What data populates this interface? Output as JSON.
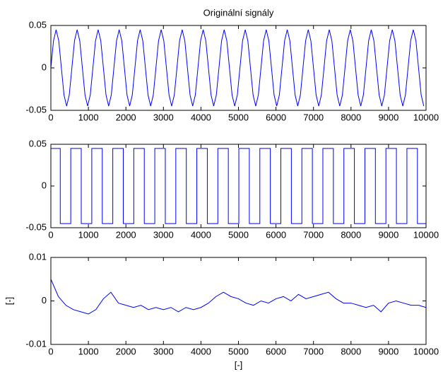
{
  "chart_data": [
    {
      "type": "line",
      "title": "Originální signály",
      "x": [
        0,
        70,
        140,
        210,
        280,
        350,
        420,
        490,
        560,
        630,
        700,
        770,
        840,
        910,
        980,
        1050,
        1120,
        1190,
        1260,
        1330,
        1400,
        1470,
        1540,
        1610,
        1680,
        1750,
        1820,
        1890,
        1960,
        2030,
        2100,
        2170,
        2240,
        2310,
        2380,
        2450,
        2520,
        2590,
        2660,
        2730,
        2800,
        2870,
        2940,
        3010,
        3080,
        3150,
        3220,
        3290,
        3360,
        3430,
        3500,
        3570,
        3640,
        3710,
        3780,
        3850,
        3920,
        3990,
        4060,
        4130,
        4200,
        4270,
        4340,
        4410,
        4480,
        4550,
        4620,
        4690,
        4760,
        4830,
        4900,
        4970,
        5040,
        5110,
        5180,
        5250,
        5320,
        5390,
        5460,
        5530,
        5600,
        5670,
        5740,
        5810,
        5880,
        5950,
        6020,
        6090,
        6160,
        6230,
        6300,
        6370,
        6440,
        6510,
        6580,
        6650,
        6720,
        6790,
        6860,
        6930,
        7000,
        7070,
        7140,
        7210,
        7280,
        7350,
        7420,
        7490,
        7560,
        7630,
        7700,
        7770,
        7840,
        7910,
        7980,
        8050,
        8120,
        8190,
        8260,
        8330,
        8400,
        8470,
        8540,
        8610,
        8680,
        8750,
        8820,
        8890,
        8960,
        9030,
        9100,
        9170,
        9240,
        9310,
        9380,
        9450,
        9520,
        9590,
        9660,
        9730,
        9800,
        9870,
        9940
      ],
      "values": [
        0,
        0.032,
        0.045,
        0.032,
        0,
        -0.032,
        -0.045,
        -0.032,
        0,
        0.032,
        0.045,
        0.032,
        0,
        -0.032,
        -0.045,
        -0.032,
        0,
        0.032,
        0.045,
        0.032,
        0,
        -0.032,
        -0.045,
        -0.032,
        0,
        0.032,
        0.045,
        0.032,
        0,
        -0.032,
        -0.045,
        -0.032,
        0,
        0.032,
        0.045,
        0.032,
        0,
        -0.032,
        -0.045,
        -0.032,
        0,
        0.032,
        0.045,
        0.032,
        0,
        -0.032,
        -0.045,
        -0.032,
        0,
        0.032,
        0.045,
        0.032,
        0,
        -0.032,
        -0.045,
        -0.032,
        0,
        0.032,
        0.045,
        0.032,
        0,
        -0.032,
        -0.045,
        -0.032,
        0,
        0.032,
        0.045,
        0.032,
        0,
        -0.032,
        -0.045,
        -0.032,
        0,
        0.032,
        0.045,
        0.032,
        0,
        -0.032,
        -0.045,
        -0.032,
        0,
        0.032,
        0.045,
        0.032,
        0,
        -0.032,
        -0.045,
        -0.032,
        0,
        0.032,
        0.045,
        0.032,
        0,
        -0.032,
        -0.045,
        -0.032,
        0,
        0.032,
        0.045,
        0.032,
        0,
        -0.032,
        -0.045,
        -0.032,
        0,
        0.032,
        0.045,
        0.032,
        0,
        -0.032,
        -0.045,
        -0.032,
        0,
        0.032,
        0.045,
        0.032,
        0,
        -0.032,
        -0.045,
        -0.032,
        0,
        0.032,
        0.045,
        0.032,
        0,
        -0.032,
        -0.045,
        -0.032,
        0,
        0.032,
        0.045,
        0.032,
        0,
        -0.032,
        -0.045,
        -0.032,
        0,
        0.032,
        0.045,
        0.032,
        0,
        -0.032,
        -0.045
      ],
      "color": "#0000ff",
      "xlim": [
        0,
        10000
      ],
      "xticks": [
        0,
        1000,
        2000,
        3000,
        4000,
        5000,
        6000,
        7000,
        8000,
        9000,
        10000
      ],
      "ylim": [
        -0.05,
        0.05
      ],
      "yticks": [
        -0.05,
        0,
        0.05
      ]
    },
    {
      "type": "line",
      "x": [
        0,
        250,
        250,
        530,
        530,
        810,
        810,
        1090,
        1090,
        1370,
        1370,
        1650,
        1650,
        1930,
        1930,
        2210,
        2210,
        2490,
        2490,
        2770,
        2770,
        3050,
        3050,
        3330,
        3330,
        3610,
        3610,
        3890,
        3890,
        4170,
        4170,
        4450,
        4450,
        4730,
        4730,
        5010,
        5010,
        5290,
        5290,
        5570,
        5570,
        5850,
        5850,
        6130,
        6130,
        6410,
        6410,
        6690,
        6690,
        6970,
        6970,
        7250,
        7250,
        7530,
        7530,
        7810,
        7810,
        8090,
        8090,
        8370,
        8370,
        8650,
        8650,
        8930,
        8930,
        9210,
        9210,
        9490,
        9490,
        9770,
        9770,
        10000
      ],
      "values": [
        0.045,
        0.045,
        -0.045,
        -0.045,
        0.045,
        0.045,
        -0.045,
        -0.045,
        0.045,
        0.045,
        -0.045,
        -0.045,
        0.045,
        0.045,
        -0.045,
        -0.045,
        0.045,
        0.045,
        -0.045,
        -0.045,
        0.045,
        0.045,
        -0.045,
        -0.045,
        0.045,
        0.045,
        -0.045,
        -0.045,
        0.045,
        0.045,
        -0.045,
        -0.045,
        0.045,
        0.045,
        -0.045,
        -0.045,
        0.045,
        0.045,
        -0.045,
        -0.045,
        0.045,
        0.045,
        -0.045,
        -0.045,
        0.045,
        0.045,
        -0.045,
        -0.045,
        0.045,
        0.045,
        -0.045,
        -0.045,
        0.045,
        0.045,
        -0.045,
        -0.045,
        0.045,
        0.045,
        -0.045,
        -0.045,
        0.045,
        0.045,
        -0.045,
        -0.045,
        0.045,
        0.045,
        -0.045,
        -0.045,
        0.045,
        0.045,
        -0.045,
        -0.045
      ],
      "color": "#0000ff",
      "xlim": [
        0,
        10000
      ],
      "xticks": [
        0,
        1000,
        2000,
        3000,
        4000,
        5000,
        6000,
        7000,
        8000,
        9000,
        10000
      ],
      "ylim": [
        -0.05,
        0.05
      ],
      "yticks": [
        -0.05,
        0,
        0.05
      ]
    },
    {
      "type": "line",
      "xlabel": "[-]",
      "ylabel": "[-]",
      "x": [
        0,
        200,
        400,
        600,
        800,
        1000,
        1200,
        1400,
        1600,
        1800,
        2000,
        2200,
        2400,
        2600,
        2800,
        3000,
        3200,
        3400,
        3600,
        3800,
        4000,
        4200,
        4400,
        4600,
        4800,
        5000,
        5200,
        5400,
        5600,
        5800,
        6000,
        6200,
        6400,
        6600,
        6800,
        7000,
        7200,
        7400,
        7600,
        7800,
        8000,
        8200,
        8400,
        8600,
        8800,
        9000,
        9200,
        9400,
        9600,
        9800,
        10000
      ],
      "values": [
        0.005,
        0.001,
        -0.001,
        -0.002,
        -0.0025,
        -0.003,
        -0.002,
        0.0005,
        0.002,
        -0.0005,
        -0.001,
        -0.0015,
        -0.001,
        -0.002,
        -0.0015,
        -0.002,
        -0.0015,
        -0.0025,
        -0.0015,
        -0.002,
        -0.0015,
        -0.0005,
        0.001,
        0.002,
        0.001,
        0.0005,
        -0.0005,
        -0.001,
        0,
        -0.0005,
        0.0005,
        0.001,
        0,
        0.0015,
        0.0005,
        0.001,
        0.0015,
        0.002,
        0.0005,
        -0.0005,
        -0.0005,
        -0.001,
        -0.0015,
        -0.001,
        -0.0025,
        -0.0005,
        0,
        -0.0005,
        -0.001,
        -0.001,
        -0.0015
      ],
      "color": "#0000ff",
      "xlim": [
        0,
        10000
      ],
      "xticks": [
        0,
        1000,
        2000,
        3000,
        4000,
        5000,
        6000,
        7000,
        8000,
        9000,
        10000
      ],
      "ylim": [
        -0.01,
        0.01
      ],
      "yticks": [
        -0.01,
        0,
        0.01
      ]
    }
  ]
}
